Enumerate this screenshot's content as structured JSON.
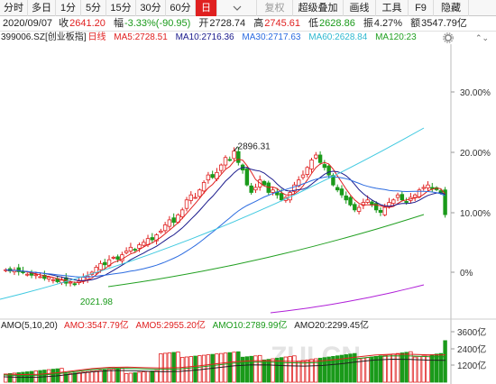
{
  "toolbar": {
    "buttons": [
      {
        "label": "分时",
        "w": 31
      },
      {
        "label": "多日",
        "w": 31
      },
      {
        "label": "1分",
        "w": 28
      },
      {
        "label": "5分",
        "w": 28
      },
      {
        "label": "15分",
        "w": 33
      },
      {
        "label": "30分",
        "w": 33
      },
      {
        "label": "60分",
        "w": 33
      },
      {
        "label": "日",
        "w": 24
      },
      {
        "label": "",
        "w": 44
      },
      {
        "label": "复权",
        "w": 40
      },
      {
        "label": "超级叠加",
        "w": 56
      },
      {
        "label": "画线",
        "w": 36
      },
      {
        "label": "工具",
        "w": 36
      },
      {
        "label": "F9",
        "w": 28
      },
      {
        "label": "隐藏",
        "w": 39
      }
    ]
  },
  "quote": {
    "date": "2020/09/07",
    "close_label": "收",
    "close": "2641.20",
    "change_label": "幅",
    "change": "-3.33%(-90.95)",
    "open_label": "开",
    "open": "2728.74",
    "high_label": "高",
    "high": "2745.61",
    "low_label": "低",
    "low": "2628.86",
    "amp_label": "振",
    "amp": "4.27%",
    "amt_label": "额",
    "amt": "3547.79亿"
  },
  "indicators": {
    "code": "399006.SZ",
    "name": "[创业板指]",
    "period": "日线",
    "ma5": "MA5:2728.51",
    "ma10": "MA10:2716.36",
    "ma30": "MA30:2717.63",
    "ma60": "MA60:2628.84",
    "ma120": "MA120:23"
  },
  "volume_panel": {
    "title": "AMO(5,10,20)",
    "amo": "AMO:3547.79亿",
    "amo5": "AMO5:2955.20亿",
    "amo10": "AMO10:2789.99亿",
    "amo20": "AMO20:2299.45亿",
    "ticks": [
      "3600亿",
      "2400亿",
      "1200亿"
    ]
  },
  "chart_data": {
    "type": "candlestick",
    "right_axis_ticks": [
      "30.00%",
      "20.00%",
      "10.00%",
      "0%"
    ],
    "annotations": {
      "high": "2896.31",
      "low": "2021.98"
    },
    "colors": {
      "up": "#e02020",
      "down": "#1a9a1a",
      "ma5": "#e02020",
      "ma10": "#1a1a8c",
      "ma30": "#2b6be0",
      "ma60": "#3fc9e0",
      "ma120": "#22a022",
      "ma250": "#b020d8"
    }
  },
  "watermark": "ZUI.CN"
}
